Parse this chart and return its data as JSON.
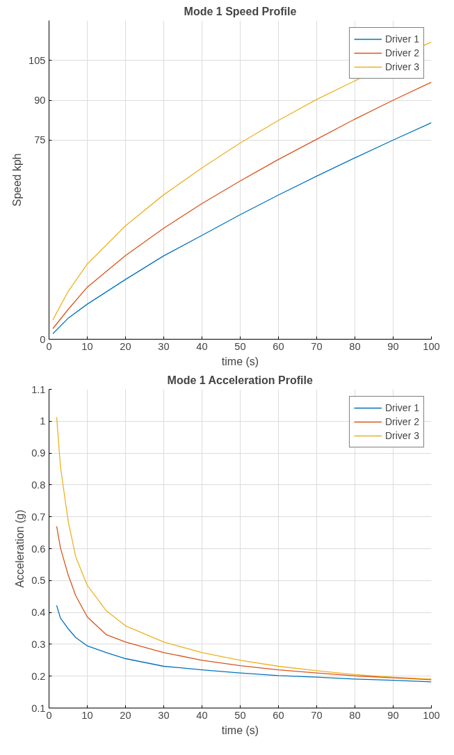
{
  "chart_data": [
    {
      "type": "line",
      "title": "Mode 1 Speed Profile",
      "xlabel": "time (s)",
      "ylabel": "Speed kph",
      "xlim": [
        0,
        100
      ],
      "ylim": [
        0,
        120
      ],
      "xticks": [
        0,
        10,
        20,
        30,
        40,
        50,
        60,
        70,
        80,
        90,
        100
      ],
      "yticks": [
        0,
        75,
        90,
        105
      ],
      "grid": true,
      "legend": "top right",
      "x": [
        1,
        5,
        10,
        20,
        30,
        40,
        50,
        60,
        70,
        80,
        90,
        100
      ],
      "series": [
        {
          "name": "Driver 1",
          "color": "#0072bd",
          "values": [
            2.1,
            7.9,
            13.2,
            22.5,
            31.4,
            39.1,
            46.9,
            54.3,
            61.4,
            68.3,
            75,
            81.5
          ]
        },
        {
          "name": "Driver 2",
          "color": "#d95319",
          "values": [
            4.0,
            11.2,
            19.6,
            31.5,
            41.8,
            51.1,
            59.6,
            67.7,
            75.3,
            82.9,
            90,
            96.8
          ]
        },
        {
          "name": "Driver 3",
          "color": "#edb120",
          "x": [
            1,
            5,
            10,
            20,
            30,
            40,
            50,
            60,
            70,
            80,
            98,
            100
          ],
          "values": [
            7.3,
            18,
            28.3,
            42.7,
            54.4,
            64.5,
            73.9,
            82.4,
            90.3,
            97.3,
            110.6,
            111.9
          ]
        }
      ]
    },
    {
      "type": "line",
      "title": "Mode 1 Acceleration Profile",
      "xlabel": "time (s)",
      "ylabel": "Acceleration (g)",
      "xlim": [
        0,
        100
      ],
      "ylim": [
        0.1,
        1.1
      ],
      "xticks": [
        0,
        10,
        20,
        30,
        40,
        50,
        60,
        70,
        80,
        90,
        100
      ],
      "yticks": [
        0.1,
        0.2,
        0.3,
        0.4,
        0.5,
        0.6,
        0.7,
        0.8,
        0.9,
        1,
        1.1
      ],
      "grid": true,
      "legend": "top right",
      "x": [
        2,
        3,
        5,
        7,
        10,
        15,
        20,
        30,
        40,
        50,
        60,
        70,
        80,
        90,
        100
      ],
      "series": [
        {
          "name": "Driver 1",
          "color": "#0072bd",
          "values": [
            0.422,
            0.382,
            0.349,
            0.321,
            0.295,
            0.274,
            0.255,
            0.231,
            0.22,
            0.21,
            0.202,
            0.197,
            0.191,
            0.187,
            0.182
          ]
        },
        {
          "name": "Driver 2",
          "color": "#d95319",
          "values": [
            0.67,
            0.602,
            0.518,
            0.452,
            0.386,
            0.33,
            0.307,
            0.274,
            0.25,
            0.233,
            0.22,
            0.21,
            0.201,
            0.195,
            0.189
          ]
        },
        {
          "name": "Driver 3",
          "color": "#edb120",
          "values": [
            1.013,
            0.856,
            0.687,
            0.574,
            0.485,
            0.405,
            0.358,
            0.307,
            0.274,
            0.25,
            0.231,
            0.217,
            0.205,
            0.197,
            0.191
          ]
        }
      ]
    }
  ]
}
